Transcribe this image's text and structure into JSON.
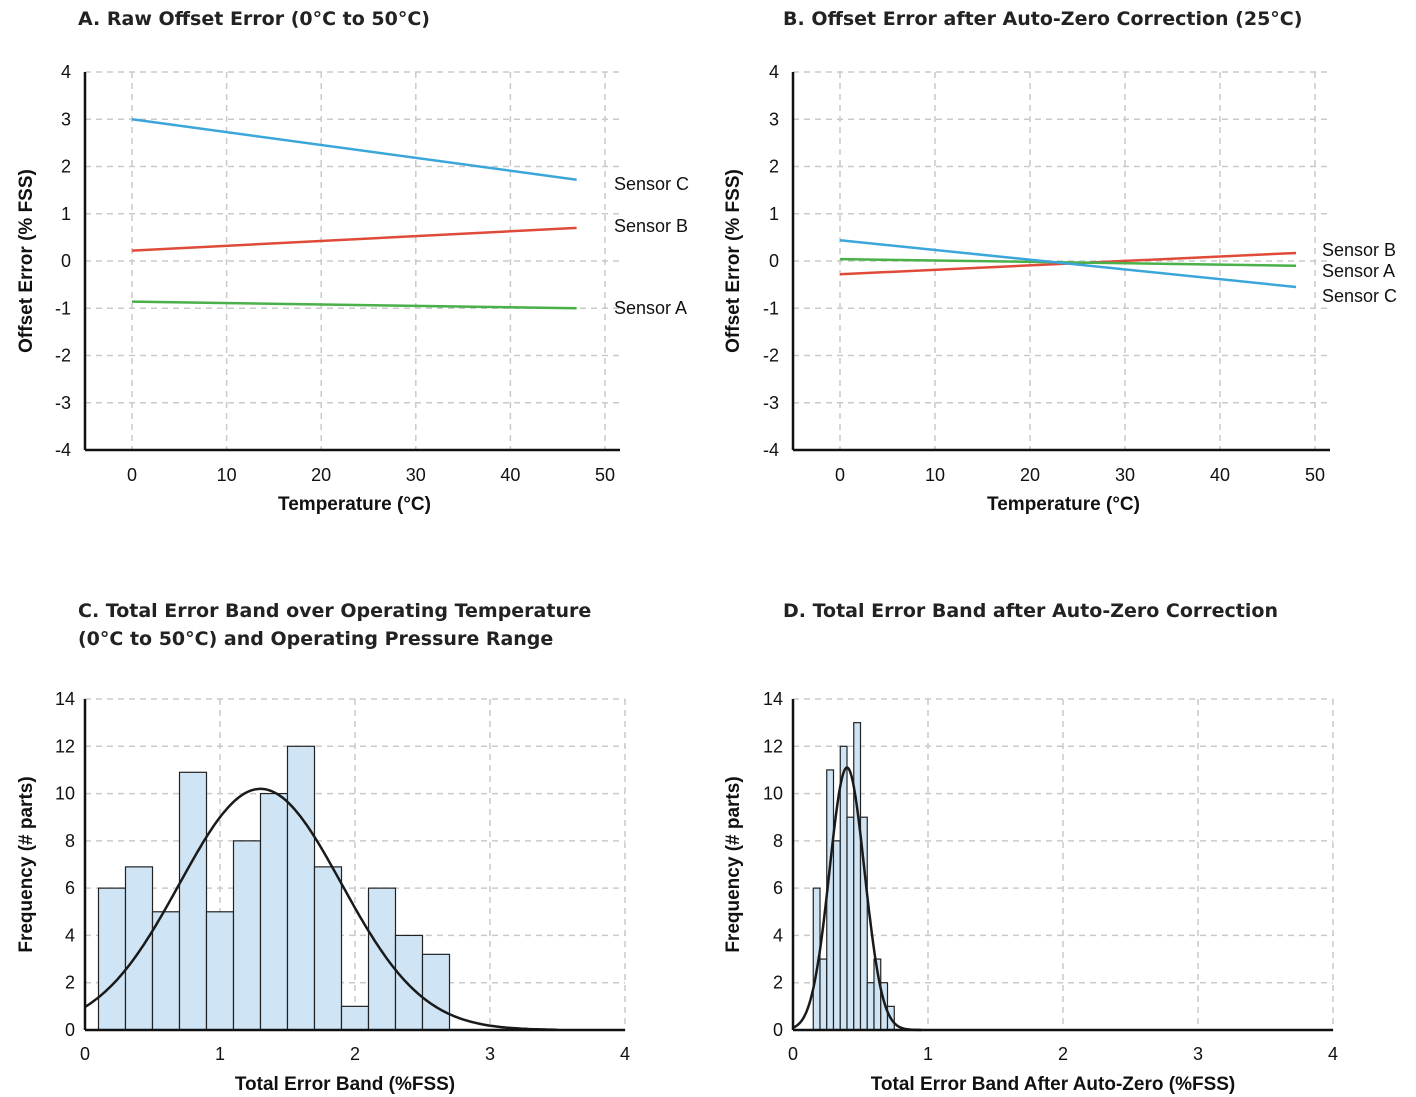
{
  "chart_data": [
    {
      "id": "A",
      "type": "line",
      "title": "A. Raw Offset Error (0°C to 50°C)",
      "xlabel": "Temperature (°C)",
      "ylabel": "Offset Error (% FSS)",
      "xlim": [
        -5,
        50
      ],
      "ylim": [
        -4,
        4
      ],
      "xticks": [
        "0",
        "10",
        "20",
        "30",
        "40",
        "50"
      ],
      "yticks": [
        "4",
        "3",
        "2",
        "1",
        "0",
        "-1",
        "-2",
        "-3",
        "-4"
      ],
      "grid": true,
      "series": [
        {
          "name": "Sensor C",
          "color": "#3aa6d9",
          "x": [
            0,
            47
          ],
          "y": [
            3.0,
            1.72
          ]
        },
        {
          "name": "Sensor B",
          "color": "#e04a3a",
          "x": [
            0,
            47
          ],
          "y": [
            0.22,
            0.7
          ]
        },
        {
          "name": "Sensor A",
          "color": "#4ab04a",
          "x": [
            0,
            47
          ],
          "y": [
            -0.86,
            -1.0
          ]
        }
      ]
    },
    {
      "id": "B",
      "type": "line",
      "title": "B. Offset Error after Auto-Zero Correction (25°C)",
      "xlabel": "Temperature (°C)",
      "ylabel": "Offset Error (% FSS)",
      "xlim": [
        -5,
        50
      ],
      "ylim": [
        -4,
        4
      ],
      "xticks": [
        "0",
        "10",
        "20",
        "30",
        "40",
        "50"
      ],
      "yticks": [
        "4",
        "3",
        "2",
        "1",
        "0",
        "-1",
        "-2",
        "-3",
        "-4"
      ],
      "grid": true,
      "series": [
        {
          "name": "Sensor B",
          "color": "#e04a3a",
          "x": [
            0,
            48
          ],
          "y": [
            -0.28,
            0.17
          ]
        },
        {
          "name": "Sensor A",
          "color": "#4ab04a",
          "x": [
            0,
            48
          ],
          "y": [
            0.04,
            -0.1
          ]
        },
        {
          "name": "Sensor C",
          "color": "#3aa6d9",
          "x": [
            0,
            48
          ],
          "y": [
            0.44,
            -0.55
          ]
        }
      ]
    },
    {
      "id": "C",
      "type": "bar",
      "title": "C. Total Error Band over Operating Temperature (0°C to 50°C) and Operating Pressure Range",
      "title_lines": [
        "C. Total Error Band over Operating Temperature",
        "(0°C to 50°C) and Operating Pressure Range"
      ],
      "xlabel": "Total Error Band (%FSS)",
      "ylabel": "Frequency (# parts)",
      "xlim": [
        0,
        4
      ],
      "ylim": [
        0,
        14
      ],
      "xticks": [
        "0",
        "1",
        "2",
        "3",
        "4"
      ],
      "yticks": [
        "14",
        "12",
        "10",
        "8",
        "6",
        "4",
        "2",
        "0"
      ],
      "grid": true,
      "bar_fill": "#cfe5f5",
      "bin_width": 0.2,
      "bins_start": [
        0.1,
        0.3,
        0.5,
        0.7,
        0.9,
        1.1,
        1.3,
        1.5,
        1.7,
        1.9,
        2.1,
        2.3,
        2.5
      ],
      "counts": [
        6,
        6.9,
        5,
        10.9,
        5,
        8,
        10,
        12,
        6.9,
        1,
        6,
        4,
        3.2
      ],
      "fit": {
        "type": "normal",
        "mean": 1.3,
        "peak": 10.2,
        "sd": 0.6,
        "x_range": [
          0,
          3.5
        ]
      }
    },
    {
      "id": "D",
      "type": "bar",
      "title": "D. Total Error Band after Auto-Zero Correction",
      "xlabel": "Total Error Band After Auto-Zero (%FSS)",
      "ylabel": "Frequency (# parts)",
      "xlim": [
        0,
        4
      ],
      "ylim": [
        0,
        14
      ],
      "xticks": [
        "0",
        "1",
        "2",
        "3",
        "4"
      ],
      "yticks": [
        "14",
        "12",
        "10",
        "8",
        "6",
        "4",
        "2",
        "0"
      ],
      "grid": true,
      "bar_fill": "#cfe5f5",
      "bin_width": 0.05,
      "bins_start": [
        0.15,
        0.2,
        0.25,
        0.3,
        0.35,
        0.4,
        0.45,
        0.5,
        0.55,
        0.6,
        0.65,
        0.7
      ],
      "counts": [
        6,
        3,
        11,
        8,
        12,
        9,
        13,
        9,
        2,
        3,
        2,
        1
      ],
      "fit": {
        "type": "normal",
        "mean": 0.4,
        "peak": 11.1,
        "sd": 0.13,
        "x_range": [
          0,
          0.95
        ]
      }
    }
  ]
}
